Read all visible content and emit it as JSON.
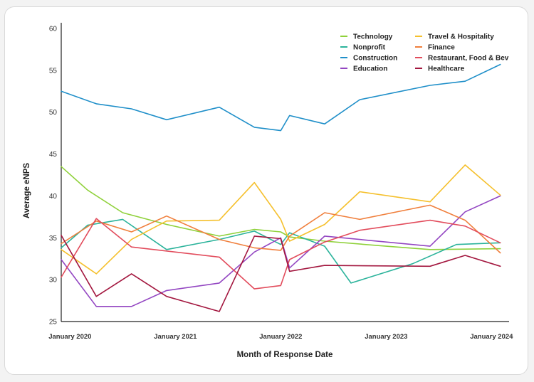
{
  "chart_data": {
    "type": "line",
    "title": "",
    "xlabel": "Month of Response Date",
    "ylabel": "Average eNPS",
    "ylim": [
      25,
      60
    ],
    "yticks": [
      25,
      30,
      35,
      40,
      45,
      50,
      55,
      60
    ],
    "xlim": [
      "2019-12",
      "2024-03"
    ],
    "xticks": [
      {
        "value": "2020-01",
        "label": "January 2020"
      },
      {
        "value": "2021-01",
        "label": "January 2021"
      },
      {
        "value": "2022-01",
        "label": "January 2022"
      },
      {
        "value": "2023-01",
        "label": "January 2023"
      },
      {
        "value": "2024-01",
        "label": "January 2024"
      }
    ],
    "grid": false,
    "legend_position": "top-right",
    "series": [
      {
        "name": "Technology",
        "color": "#8fd13a",
        "points": [
          {
            "x": "2019-12",
            "y": 43.5
          },
          {
            "x": "2020-03",
            "y": 40.7
          },
          {
            "x": "2020-07",
            "y": 38.0
          },
          {
            "x": "2020-12",
            "y": 36.6
          },
          {
            "x": "2021-06",
            "y": 35.2
          },
          {
            "x": "2021-10",
            "y": 36.0
          },
          {
            "x": "2022-01",
            "y": 35.7
          },
          {
            "x": "2022-02",
            "y": 35.1
          },
          {
            "x": "2022-06",
            "y": 34.6
          },
          {
            "x": "2023-01",
            "y": 34.0
          },
          {
            "x": "2023-06",
            "y": 33.6
          },
          {
            "x": "2024-02",
            "y": 33.7
          }
        ]
      },
      {
        "name": "Nonprofit",
        "color": "#2bb39b",
        "points": [
          {
            "x": "2019-12",
            "y": 33.8
          },
          {
            "x": "2020-03",
            "y": 36.5
          },
          {
            "x": "2020-07",
            "y": 37.2
          },
          {
            "x": "2020-12",
            "y": 33.6
          },
          {
            "x": "2021-06",
            "y": 34.8
          },
          {
            "x": "2021-10",
            "y": 35.8
          },
          {
            "x": "2022-01",
            "y": 34.2
          },
          {
            "x": "2022-02",
            "y": 35.6
          },
          {
            "x": "2022-06",
            "y": 34.0
          },
          {
            "x": "2022-09",
            "y": 29.6
          },
          {
            "x": "2023-04",
            "y": 31.9
          },
          {
            "x": "2023-09",
            "y": 34.2
          },
          {
            "x": "2024-02",
            "y": 34.4
          }
        ]
      },
      {
        "name": "Construction",
        "color": "#1f8fc9",
        "points": [
          {
            "x": "2019-12",
            "y": 52.5
          },
          {
            "x": "2020-04",
            "y": 51.0
          },
          {
            "x": "2020-08",
            "y": 50.4
          },
          {
            "x": "2020-12",
            "y": 49.1
          },
          {
            "x": "2021-06",
            "y": 50.6
          },
          {
            "x": "2021-10",
            "y": 48.2
          },
          {
            "x": "2022-01",
            "y": 47.8
          },
          {
            "x": "2022-02",
            "y": 49.6
          },
          {
            "x": "2022-06",
            "y": 48.6
          },
          {
            "x": "2022-10",
            "y": 51.5
          },
          {
            "x": "2023-06",
            "y": 53.2
          },
          {
            "x": "2023-10",
            "y": 53.7
          },
          {
            "x": "2024-02",
            "y": 55.7
          }
        ]
      },
      {
        "name": "Education",
        "color": "#9346c2",
        "points": [
          {
            "x": "2019-12",
            "y": 32.4
          },
          {
            "x": "2020-04",
            "y": 26.8
          },
          {
            "x": "2020-08",
            "y": 26.8
          },
          {
            "x": "2020-12",
            "y": 28.7
          },
          {
            "x": "2021-06",
            "y": 29.6
          },
          {
            "x": "2021-10",
            "y": 33.3
          },
          {
            "x": "2022-01",
            "y": 35.0
          },
          {
            "x": "2022-02",
            "y": 31.4
          },
          {
            "x": "2022-06",
            "y": 35.2
          },
          {
            "x": "2023-06",
            "y": 34.0
          },
          {
            "x": "2023-10",
            "y": 38.1
          },
          {
            "x": "2024-02",
            "y": 40.0
          }
        ]
      },
      {
        "name": "Travel & Hospitality",
        "color": "#f5c02d",
        "points": [
          {
            "x": "2019-12",
            "y": 33.6
          },
          {
            "x": "2020-04",
            "y": 30.7
          },
          {
            "x": "2020-08",
            "y": 34.8
          },
          {
            "x": "2020-12",
            "y": 37.0
          },
          {
            "x": "2021-06",
            "y": 37.1
          },
          {
            "x": "2021-10",
            "y": 41.6
          },
          {
            "x": "2022-01",
            "y": 37.2
          },
          {
            "x": "2022-02",
            "y": 34.6
          },
          {
            "x": "2022-06",
            "y": 36.6
          },
          {
            "x": "2022-10",
            "y": 40.5
          },
          {
            "x": "2023-06",
            "y": 39.3
          },
          {
            "x": "2023-10",
            "y": 43.7
          },
          {
            "x": "2024-02",
            "y": 40.1
          }
        ]
      },
      {
        "name": "Finance",
        "color": "#f07f3c",
        "points": [
          {
            "x": "2019-12",
            "y": 34.3
          },
          {
            "x": "2020-04",
            "y": 37.0
          },
          {
            "x": "2020-08",
            "y": 35.7
          },
          {
            "x": "2020-12",
            "y": 37.6
          },
          {
            "x": "2021-06",
            "y": 34.8
          },
          {
            "x": "2021-10",
            "y": 33.8
          },
          {
            "x": "2022-01",
            "y": 33.5
          },
          {
            "x": "2022-02",
            "y": 35.2
          },
          {
            "x": "2022-06",
            "y": 38.0
          },
          {
            "x": "2022-10",
            "y": 37.2
          },
          {
            "x": "2023-06",
            "y": 38.9
          },
          {
            "x": "2023-10",
            "y": 37.1
          },
          {
            "x": "2024-02",
            "y": 33.2
          }
        ]
      },
      {
        "name": "Restaurant, Food & Bev",
        "color": "#e24c5c",
        "points": [
          {
            "x": "2019-12",
            "y": 30.3
          },
          {
            "x": "2020-04",
            "y": 37.3
          },
          {
            "x": "2020-08",
            "y": 33.9
          },
          {
            "x": "2021-06",
            "y": 32.7
          },
          {
            "x": "2021-10",
            "y": 28.9
          },
          {
            "x": "2022-01",
            "y": 29.3
          },
          {
            "x": "2022-02",
            "y": 32.4
          },
          {
            "x": "2022-06",
            "y": 34.5
          },
          {
            "x": "2022-10",
            "y": 35.9
          },
          {
            "x": "2023-06",
            "y": 37.1
          },
          {
            "x": "2023-10",
            "y": 36.4
          },
          {
            "x": "2024-02",
            "y": 34.4
          }
        ]
      },
      {
        "name": "Healthcare",
        "color": "#a3173f",
        "points": [
          {
            "x": "2019-12",
            "y": 35.3
          },
          {
            "x": "2020-04",
            "y": 28.0
          },
          {
            "x": "2020-08",
            "y": 30.7
          },
          {
            "x": "2020-12",
            "y": 28.0
          },
          {
            "x": "2021-06",
            "y": 26.2
          },
          {
            "x": "2021-10",
            "y": 35.2
          },
          {
            "x": "2022-01",
            "y": 34.9
          },
          {
            "x": "2022-02",
            "y": 31.0
          },
          {
            "x": "2022-06",
            "y": 31.7
          },
          {
            "x": "2023-06",
            "y": 31.6
          },
          {
            "x": "2023-10",
            "y": 32.9
          },
          {
            "x": "2024-02",
            "y": 31.6
          }
        ]
      }
    ]
  }
}
